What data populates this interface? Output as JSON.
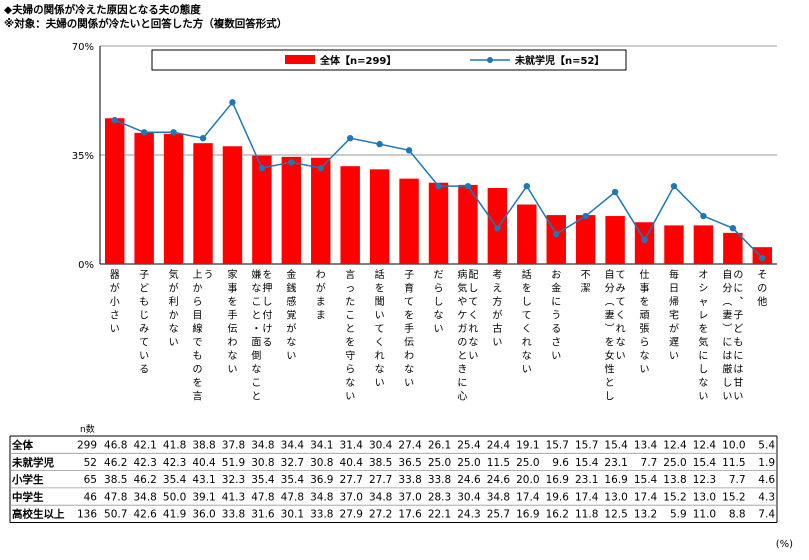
{
  "title": "◆夫婦の関係が冷えた原因となる夫の態度",
  "subtitle": "※対象：夫婦の関係が冷たいと回答した方（複数回答形式）",
  "unit_note": "(%)",
  "colors": {
    "bar": "#ff0000",
    "line": "#1f77b4",
    "grid": "#999999"
  },
  "chart_data": {
    "type": "bar",
    "ylim": [
      0,
      70
    ],
    "y_ticks": [
      "0%",
      "35%",
      "70%"
    ],
    "legend_placement": "top",
    "grid": true,
    "categories": [
      "器が小さい",
      "子どもじみている",
      "気が利かない",
      "上から目線でものを言う",
      "家事を手伝わない",
      "嫌なこと・面倒なことを押し付ける",
      "金銭感覚がない",
      "わがまま",
      "言ったことを守らない",
      "話を聞いてくれない",
      "子育てを手伝わない",
      "だらしない",
      "病気やケガのときに心配してくれない",
      "考え方が古い",
      "話をしてくれない",
      "お金にうるさい",
      "不潔",
      "自分（妻）を女性としてみてくれない",
      "仕事を頑張らない",
      "毎日帰宅が遅い",
      "オシャレを気にしない",
      "自分（妻）には厳しいのに、子どもには甘い",
      "その他"
    ],
    "series": [
      {
        "name": "全体【n=299】",
        "kind": "bar",
        "values": [
          46.8,
          42.1,
          41.8,
          38.8,
          37.8,
          34.8,
          34.4,
          34.1,
          31.4,
          30.4,
          27.4,
          26.1,
          25.4,
          24.4,
          19.1,
          15.7,
          15.7,
          15.4,
          13.4,
          12.4,
          12.4,
          10.0,
          5.4
        ]
      },
      {
        "name": "未就学児【n=52】",
        "kind": "line",
        "values": [
          46.2,
          42.3,
          42.3,
          40.4,
          51.9,
          30.8,
          32.7,
          30.8,
          40.4,
          38.5,
          36.5,
          25.0,
          25.0,
          11.5,
          25.0,
          9.6,
          15.4,
          23.1,
          7.7,
          25.0,
          15.4,
          11.5,
          1.9
        ]
      }
    ],
    "table": {
      "n_header": "n数",
      "rows": [
        {
          "label": "全体",
          "n": "299",
          "values": [
            "46.8",
            "42.1",
            "41.8",
            "38.8",
            "37.8",
            "34.8",
            "34.4",
            "34.1",
            "31.4",
            "30.4",
            "27.4",
            "26.1",
            "25.4",
            "24.4",
            "19.1",
            "15.7",
            "15.7",
            "15.4",
            "13.4",
            "12.4",
            "12.4",
            "10.0",
            "5.4"
          ]
        },
        {
          "label": "未就学児",
          "n": "52",
          "values": [
            "46.2",
            "42.3",
            "42.3",
            "40.4",
            "51.9",
            "30.8",
            "32.7",
            "30.8",
            "40.4",
            "38.5",
            "36.5",
            "25.0",
            "25.0",
            "11.5",
            "25.0",
            "9.6",
            "15.4",
            "23.1",
            "7.7",
            "25.0",
            "15.4",
            "11.5",
            "1.9"
          ]
        },
        {
          "label": "小学生",
          "n": "65",
          "values": [
            "38.5",
            "46.2",
            "35.4",
            "43.1",
            "32.3",
            "35.4",
            "35.4",
            "36.9",
            "27.7",
            "27.7",
            "33.8",
            "33.8",
            "24.6",
            "24.6",
            "20.0",
            "16.9",
            "23.1",
            "16.9",
            "15.4",
            "13.8",
            "12.3",
            "7.7",
            "4.6"
          ]
        },
        {
          "label": "中学生",
          "n": "46",
          "values": [
            "47.8",
            "34.8",
            "50.0",
            "39.1",
            "41.3",
            "47.8",
            "47.8",
            "34.8",
            "37.0",
            "34.8",
            "37.0",
            "28.3",
            "30.4",
            "34.8",
            "17.4",
            "19.6",
            "17.4",
            "13.0",
            "17.4",
            "15.2",
            "13.0",
            "15.2",
            "4.3"
          ]
        },
        {
          "label": "高校生以上",
          "n": "136",
          "values": [
            "50.7",
            "42.6",
            "41.9",
            "36.0",
            "33.8",
            "31.6",
            "30.1",
            "33.8",
            "27.9",
            "27.2",
            "17.6",
            "22.1",
            "24.3",
            "25.7",
            "16.9",
            "16.2",
            "11.8",
            "12.5",
            "13.2",
            "5.9",
            "11.0",
            "8.8",
            "7.4"
          ]
        }
      ]
    }
  }
}
